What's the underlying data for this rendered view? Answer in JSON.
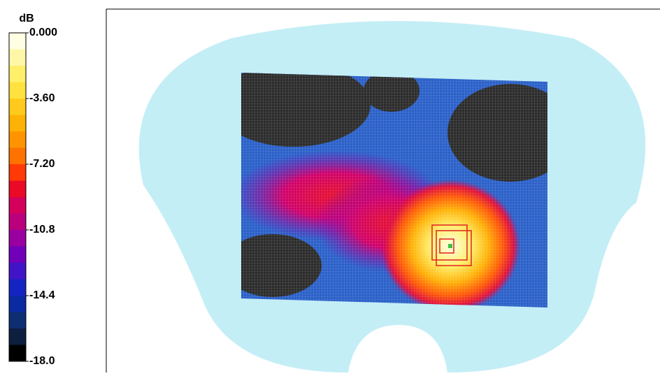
{
  "chart_data": {
    "type": "heatmap",
    "colorbar": {
      "label": "dB",
      "lim": [
        -18,
        0
      ],
      "ticks": [
        {
          "value": 0,
          "label": "0.000"
        },
        {
          "value": -3.6,
          "label": "-3.60"
        },
        {
          "value": -7.2,
          "label": "-7.20"
        },
        -10.8,
        -14.4,
        {
          "value": -18,
          "label": "-18.0"
        }
      ],
      "colors": [
        "#fffde2",
        "#fff7a8",
        "#ffef6a",
        "#ffe23e",
        "#ffca1c",
        "#ffb206",
        "#ff9400",
        "#ff7200",
        "#ff3a06",
        "#ea0a26",
        "#d4005c",
        "#ba007c",
        "#9a00a0",
        "#7000ba",
        "#4214c8",
        "#1424c2",
        "#0a2aa2",
        "#0e2e72",
        "#0e1e3e",
        "#000000"
      ]
    }
  }
}
